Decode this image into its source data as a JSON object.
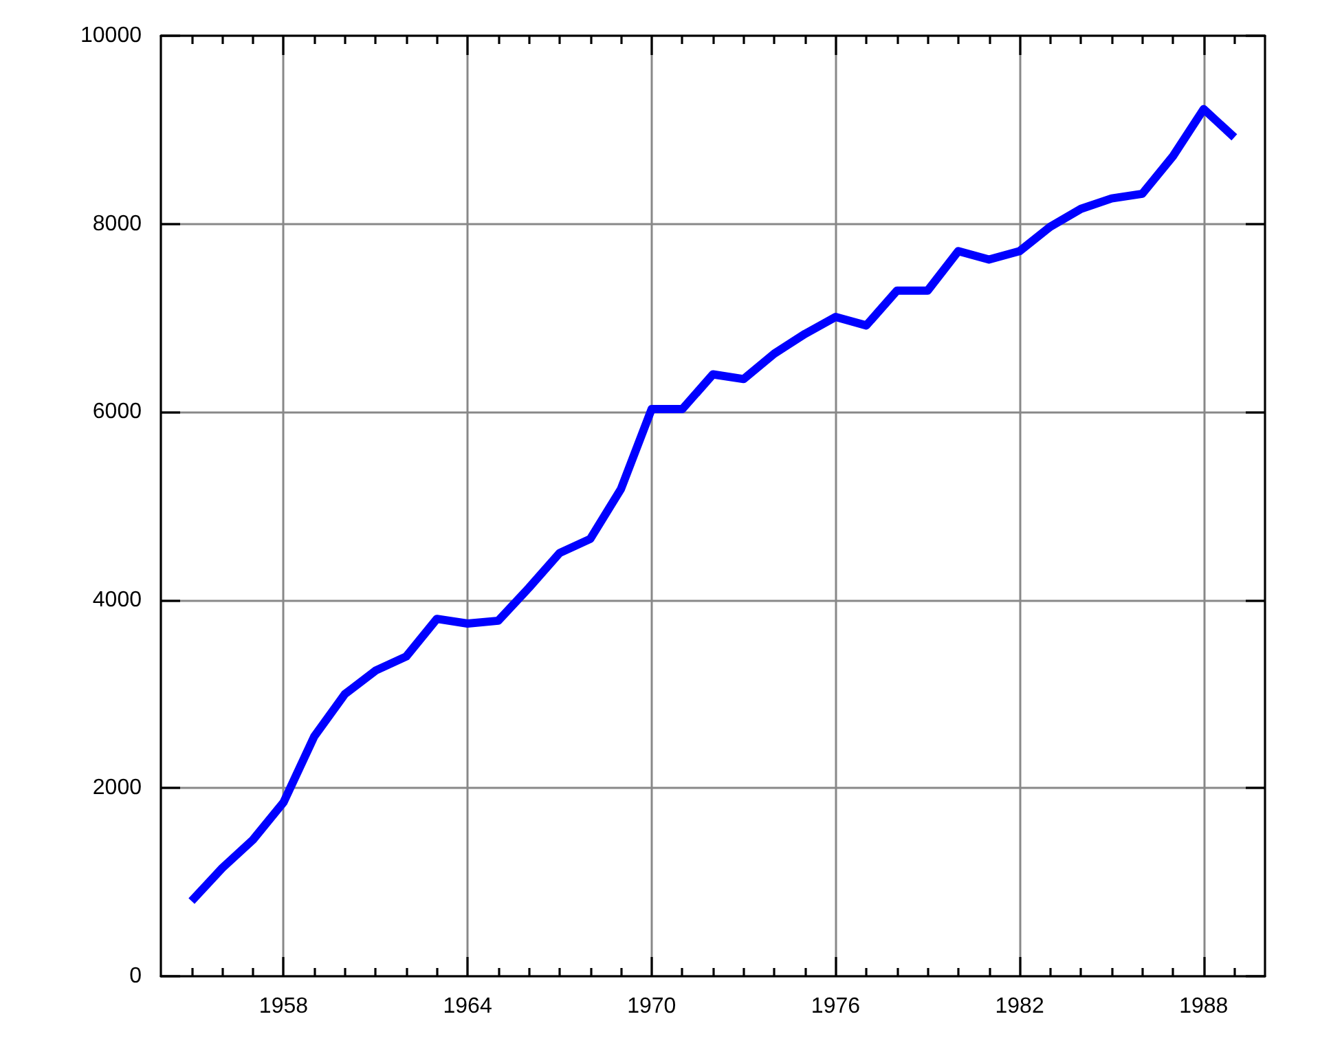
{
  "chart_data": {
    "type": "line",
    "x": [
      1955,
      1956,
      1957,
      1958,
      1959,
      1960,
      1961,
      1962,
      1963,
      1964,
      1965,
      1966,
      1967,
      1968,
      1969,
      1970,
      1971,
      1972,
      1973,
      1974,
      1975,
      1976,
      1977,
      1978,
      1979,
      1980,
      1981,
      1982,
      1983,
      1984,
      1985,
      1986,
      1987,
      1988,
      1989
    ],
    "series": [
      {
        "color": "#0000ff",
        "values": [
          800,
          1150,
          1450,
          1850,
          2550,
          3000,
          3250,
          3400,
          3800,
          3750,
          3780,
          4130,
          4500,
          4650,
          5180,
          6030,
          6030,
          6400,
          6350,
          6620,
          6830,
          7010,
          6920,
          7290,
          7290,
          7710,
          7620,
          7710,
          7970,
          8160,
          8270,
          8320,
          8720,
          9220,
          8920
        ]
      }
    ],
    "xlim": [
      1954,
      1990
    ],
    "xticks": [
      {
        "value": 1955,
        "label": null
      },
      {
        "value": 1956,
        "label": null
      },
      {
        "value": 1957,
        "label": null
      },
      1958,
      {
        "value": 1959,
        "label": null
      },
      {
        "value": 1960,
        "label": null
      },
      {
        "value": 1961,
        "label": null
      },
      {
        "value": 1962,
        "label": null
      },
      {
        "value": 1963,
        "label": null
      },
      1964,
      {
        "value": 1965,
        "label": null
      },
      {
        "value": 1966,
        "label": null
      },
      {
        "value": 1967,
        "label": null
      },
      {
        "value": 1968,
        "label": null
      },
      {
        "value": 1969,
        "label": null
      },
      1970,
      {
        "value": 1971,
        "label": null
      },
      {
        "value": 1972,
        "label": null
      },
      {
        "value": 1973,
        "label": null
      },
      {
        "value": 1974,
        "label": null
      },
      {
        "value": 1975,
        "label": null
      },
      1976,
      {
        "value": 1977,
        "label": null
      },
      {
        "value": 1978,
        "label": null
      },
      {
        "value": 1979,
        "label": null
      },
      {
        "value": 1980,
        "label": null
      },
      {
        "value": 1981,
        "label": null
      },
      1982,
      {
        "value": 1983,
        "label": null
      },
      {
        "value": 1984,
        "label": null
      },
      {
        "value": 1985,
        "label": null
      },
      {
        "value": 1986,
        "label": null
      },
      {
        "value": 1987,
        "label": null
      },
      1988,
      {
        "value": 1989,
        "label": null
      }
    ],
    "ylim": [
      0,
      10000
    ],
    "yticks": [
      0,
      2000,
      4000,
      6000,
      8000,
      10000
    ],
    "grid": true,
    "marker": "none",
    "line_style": "solid"
  }
}
